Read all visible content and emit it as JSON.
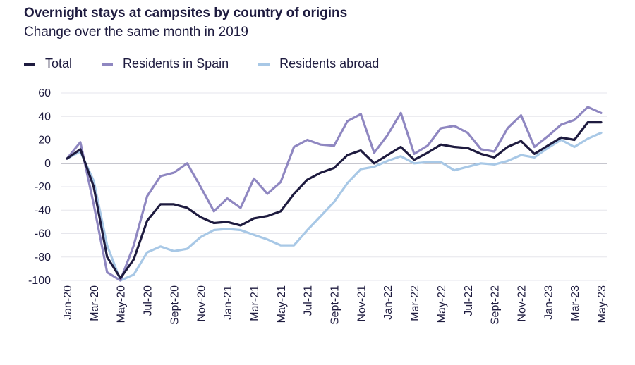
{
  "chart_data": {
    "type": "line",
    "title": "Overnight stays at campsites by country of origins",
    "subtitle": "Change over the same month in 2019",
    "xlabel": "",
    "ylabel": "",
    "ylim": [
      -100,
      60
    ],
    "yticks": [
      -100,
      -80,
      -60,
      -40,
      -20,
      0,
      20,
      40,
      60
    ],
    "grid": true,
    "legend_position": "top-left",
    "x": [
      "Jan-20",
      "Feb-20",
      "Mar-20",
      "Apr-20",
      "May-20",
      "Jun-20",
      "Jul-20",
      "Aug-20",
      "Sept-20",
      "Oct-20",
      "Nov-20",
      "Dec-20",
      "Jan-21",
      "Feb-21",
      "Mar-21",
      "Apr-21",
      "May-21",
      "Jun-21",
      "Jul-21",
      "Aug-21",
      "Sept-21",
      "Oct-21",
      "Nov-21",
      "Dec-21",
      "Jan-22",
      "Feb-22",
      "Mar-22",
      "Apr-22",
      "May-22",
      "Jun-22",
      "Jul-22",
      "Aug-22",
      "Sept-22",
      "Oct-22",
      "Nov-22",
      "Dec-22",
      "Jan-23",
      "Feb-23",
      "Mar-23",
      "Apr-23",
      "May-23"
    ],
    "tick_labels": [
      "Jan-20",
      "",
      "Mar-20",
      "",
      "May-20",
      "",
      "Jul-20",
      "",
      "Sept-20",
      "",
      "Nov-20",
      "",
      "Jan-21",
      "",
      "Mar-21",
      "",
      "May-21",
      "",
      "Jul-21",
      "",
      "Sept-21",
      "",
      "Nov-21",
      "",
      "Jan-22",
      "",
      "Mar-22",
      "",
      "May-22",
      "",
      "Jul-22",
      "",
      "Sept-22",
      "",
      "Nov-22",
      "",
      "Jan-23",
      "",
      "Mar-23",
      "",
      "May-23"
    ],
    "series": [
      {
        "name": "Total",
        "color": "#1e1b3f",
        "values": [
          4,
          12,
          -20,
          -80,
          -98,
          -82,
          -49,
          -35,
          -35,
          -38,
          -46,
          -51,
          -50,
          -53,
          -47,
          -45,
          -41,
          -26,
          -14,
          -8,
          -4,
          7,
          11,
          0,
          7,
          14,
          3,
          9,
          16,
          14,
          13,
          8,
          5,
          14,
          19,
          8,
          15,
          22,
          20,
          35,
          35
        ]
      },
      {
        "name": "Residents in Spain",
        "color": "#8f87c1",
        "values": [
          4,
          18,
          -35,
          -93,
          -100,
          -70,
          -28,
          -11,
          -8,
          0,
          -20,
          -41,
          -30,
          -38,
          -13,
          -26,
          -16,
          14,
          20,
          16,
          15,
          36,
          42,
          9,
          24,
          43,
          8,
          15,
          30,
          32,
          26,
          12,
          10,
          30,
          41,
          14,
          23,
          33,
          37,
          48,
          43
        ]
      },
      {
        "name": "Residents abroad",
        "color": "#a8c8e6",
        "values": [
          4,
          10,
          -15,
          -70,
          -100,
          -95,
          -76,
          -71,
          -75,
          -73,
          -63,
          -57,
          -56,
          -57,
          -61,
          -65,
          -70,
          -70,
          -57,
          -45,
          -33,
          -17,
          -5,
          -3,
          2,
          6,
          0,
          1,
          1,
          -6,
          -3,
          0,
          -1,
          2,
          7,
          5,
          13,
          20,
          14,
          21,
          26
        ]
      }
    ]
  }
}
